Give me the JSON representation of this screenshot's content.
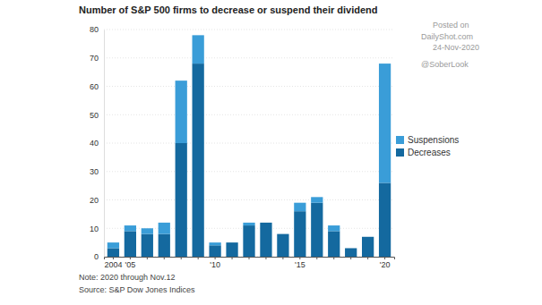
{
  "chart_data": {
    "type": "bar",
    "title": "Number of S&P 500 firms to decrease or suspend their dividend",
    "categories": [
      "2004",
      "'05",
      null,
      null,
      null,
      null,
      "'10",
      null,
      null,
      null,
      null,
      "'15",
      null,
      null,
      null,
      null,
      "'20"
    ],
    "series": [
      {
        "name": "Decreases",
        "color": "#14699f",
        "values": [
          3,
          9,
          8,
          8,
          40,
          68,
          4,
          5,
          11,
          12,
          8,
          16,
          19,
          9,
          3,
          7,
          26
        ]
      },
      {
        "name": "Suspensions",
        "color": "#3a9dd8",
        "values": [
          2,
          2,
          2,
          4,
          22,
          10,
          1,
          0,
          1,
          0,
          0,
          3,
          2,
          2,
          0,
          0,
          42
        ]
      }
    ],
    "stacked": true,
    "ylim": [
      0,
      80
    ],
    "yticks": [
      0,
      10,
      20,
      30,
      40,
      50,
      60,
      70,
      80
    ],
    "grid": true,
    "legend": "right",
    "note": "Note: 2020 through Nov.12",
    "source": "Source: S&P Dow Jones Indices",
    "annotations": [
      "Posted on",
      "DailyShot.com",
      "24-Nov-2020",
      "@SoberLook"
    ]
  }
}
